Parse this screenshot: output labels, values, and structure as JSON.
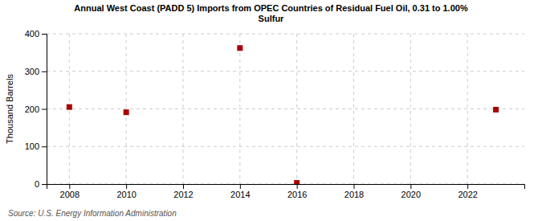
{
  "chart_data": {
    "type": "scatter",
    "title": "Annual West Coast (PADD 5) Imports from OPEC Countries of Residual Fuel Oil, 0.31 to 1.00%\nSulfur",
    "ylabel": "Thousand Barrels",
    "annotations": [
      "Source: U.S. Energy Information Administration"
    ],
    "x": [
      2008,
      2010,
      2014,
      2016,
      2023
    ],
    "values": [
      205,
      191,
      362,
      3,
      198
    ],
    "color": "#aa0000",
    "marker": "square",
    "xlim": [
      2007.2,
      2024.0
    ],
    "ylim": [
      0,
      400
    ],
    "xticks": [
      2008,
      2010,
      2012,
      2014,
      2016,
      2018,
      2020,
      2022
    ],
    "yticks": [
      0,
      100,
      200,
      300,
      400
    ],
    "grid": true
  }
}
